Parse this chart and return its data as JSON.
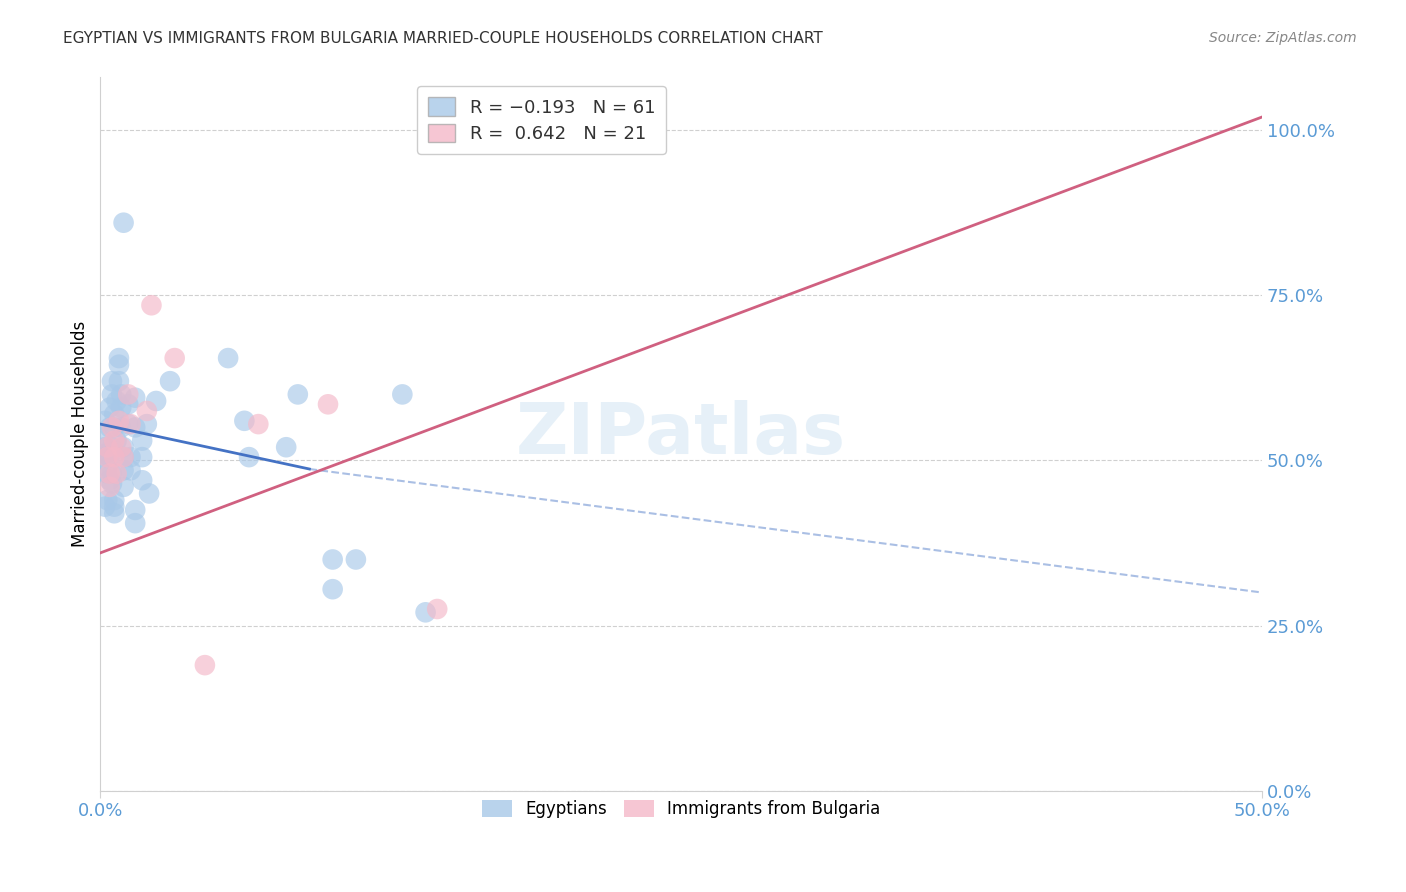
{
  "title": "EGYPTIAN VS IMMIGRANTS FROM BULGARIA MARRIED-COUPLE HOUSEHOLDS CORRELATION CHART",
  "source": "Source: ZipAtlas.com",
  "ylabel": "Married-couple Households",
  "xlim": [
    0.0,
    0.5
  ],
  "ylim": [
    0.0,
    1.08
  ],
  "yticks": [
    0.0,
    0.25,
    0.5,
    0.75,
    1.0
  ],
  "ytick_labels": [
    "0.0%",
    "25.0%",
    "50.0%",
    "75.0%",
    "100.0%"
  ],
  "xticks": [
    0.0,
    0.5
  ],
  "xtick_labels": [
    "0.0%",
    "50.0%"
  ],
  "legend_labels_bottom": [
    "Egyptians",
    "Immigrants from Bulgaria"
  ],
  "watermark": "ZIPatlas",
  "blue_color": "#a8c8e8",
  "pink_color": "#f4b8c8",
  "blue_line_color": "#4472c4",
  "pink_line_color": "#d06080",
  "blue_scatter": [
    [
      0.001,
      0.53
    ],
    [
      0.002,
      0.52
    ],
    [
      0.002,
      0.51
    ],
    [
      0.003,
      0.505
    ],
    [
      0.003,
      0.49
    ],
    [
      0.003,
      0.48
    ],
    [
      0.004,
      0.47
    ],
    [
      0.002,
      0.56
    ],
    [
      0.003,
      0.44
    ],
    [
      0.002,
      0.43
    ],
    [
      0.005,
      0.6
    ],
    [
      0.005,
      0.62
    ],
    [
      0.004,
      0.58
    ],
    [
      0.004,
      0.55
    ],
    [
      0.005,
      0.52
    ],
    [
      0.004,
      0.505
    ],
    [
      0.005,
      0.48
    ],
    [
      0.005,
      0.465
    ],
    [
      0.006,
      0.44
    ],
    [
      0.006,
      0.43
    ],
    [
      0.006,
      0.42
    ],
    [
      0.006,
      0.55
    ],
    [
      0.006,
      0.57
    ],
    [
      0.007,
      0.53
    ],
    [
      0.007,
      0.59
    ],
    [
      0.008,
      0.655
    ],
    [
      0.008,
      0.645
    ],
    [
      0.008,
      0.62
    ],
    [
      0.009,
      0.6
    ],
    [
      0.009,
      0.58
    ],
    [
      0.009,
      0.55
    ],
    [
      0.01,
      0.52
    ],
    [
      0.01,
      0.505
    ],
    [
      0.01,
      0.485
    ],
    [
      0.01,
      0.46
    ],
    [
      0.012,
      0.555
    ],
    [
      0.012,
      0.585
    ],
    [
      0.013,
      0.505
    ],
    [
      0.013,
      0.485
    ],
    [
      0.015,
      0.595
    ],
    [
      0.015,
      0.55
    ],
    [
      0.015,
      0.425
    ],
    [
      0.015,
      0.405
    ],
    [
      0.018,
      0.53
    ],
    [
      0.018,
      0.505
    ],
    [
      0.018,
      0.47
    ],
    [
      0.02,
      0.555
    ],
    [
      0.021,
      0.45
    ],
    [
      0.024,
      0.59
    ],
    [
      0.03,
      0.62
    ],
    [
      0.01,
      0.86
    ],
    [
      0.055,
      0.655
    ],
    [
      0.062,
      0.56
    ],
    [
      0.064,
      0.505
    ],
    [
      0.08,
      0.52
    ],
    [
      0.085,
      0.6
    ],
    [
      0.1,
      0.35
    ],
    [
      0.1,
      0.305
    ],
    [
      0.11,
      0.35
    ],
    [
      0.13,
      0.6
    ],
    [
      0.14,
      0.27
    ]
  ],
  "pink_scatter": [
    [
      0.003,
      0.52
    ],
    [
      0.003,
      0.505
    ],
    [
      0.004,
      0.48
    ],
    [
      0.004,
      0.46
    ],
    [
      0.005,
      0.55
    ],
    [
      0.006,
      0.53
    ],
    [
      0.006,
      0.505
    ],
    [
      0.007,
      0.48
    ],
    [
      0.008,
      0.56
    ],
    [
      0.009,
      0.52
    ],
    [
      0.01,
      0.505
    ],
    [
      0.012,
      0.6
    ],
    [
      0.013,
      0.555
    ],
    [
      0.02,
      0.575
    ],
    [
      0.022,
      0.735
    ],
    [
      0.032,
      0.655
    ],
    [
      0.045,
      0.19
    ],
    [
      0.068,
      0.555
    ],
    [
      0.098,
      0.585
    ],
    [
      0.145,
      0.275
    ],
    [
      0.155,
      1.0
    ]
  ],
  "blue_line_solid": {
    "x0": 0.0,
    "y0": 0.555,
    "x1": 0.09,
    "y1": 0.487
  },
  "blue_line_dashed": {
    "x0": 0.09,
    "y0": 0.487,
    "x1": 0.5,
    "y1": 0.3
  },
  "pink_line": {
    "x0": 0.0,
    "y0": 0.36,
    "x1": 0.5,
    "y1": 1.02
  }
}
